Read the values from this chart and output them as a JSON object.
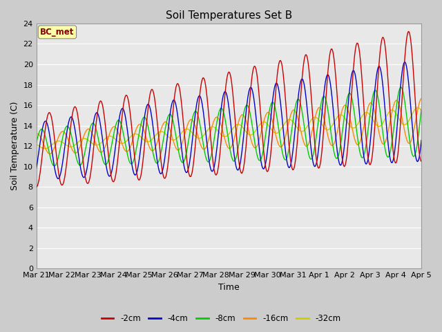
{
  "title": "Soil Temperatures Set B",
  "xlabel": "Time",
  "ylabel": "Soil Temperature (C)",
  "ylim": [
    0,
    24
  ],
  "yticks": [
    0,
    2,
    4,
    6,
    8,
    10,
    12,
    14,
    16,
    18,
    20,
    22,
    24
  ],
  "colors": {
    "-2cm": "#cc0000",
    "-4cm": "#0000cc",
    "-8cm": "#00cc00",
    "-16cm": "#ff8800",
    "-32cm": "#cccc00"
  },
  "legend_label": "BC_met",
  "x_labels": [
    "Mar 21",
    "Mar 22",
    "Mar 23",
    "Mar 24",
    "Mar 25",
    "Mar 26",
    "Mar 27",
    "Mar 28",
    "Mar 29",
    "Mar 30",
    "Mar 31",
    "Apr 1",
    "Apr 2",
    "Apr 3",
    "Apr 4",
    "Apr 5"
  ]
}
